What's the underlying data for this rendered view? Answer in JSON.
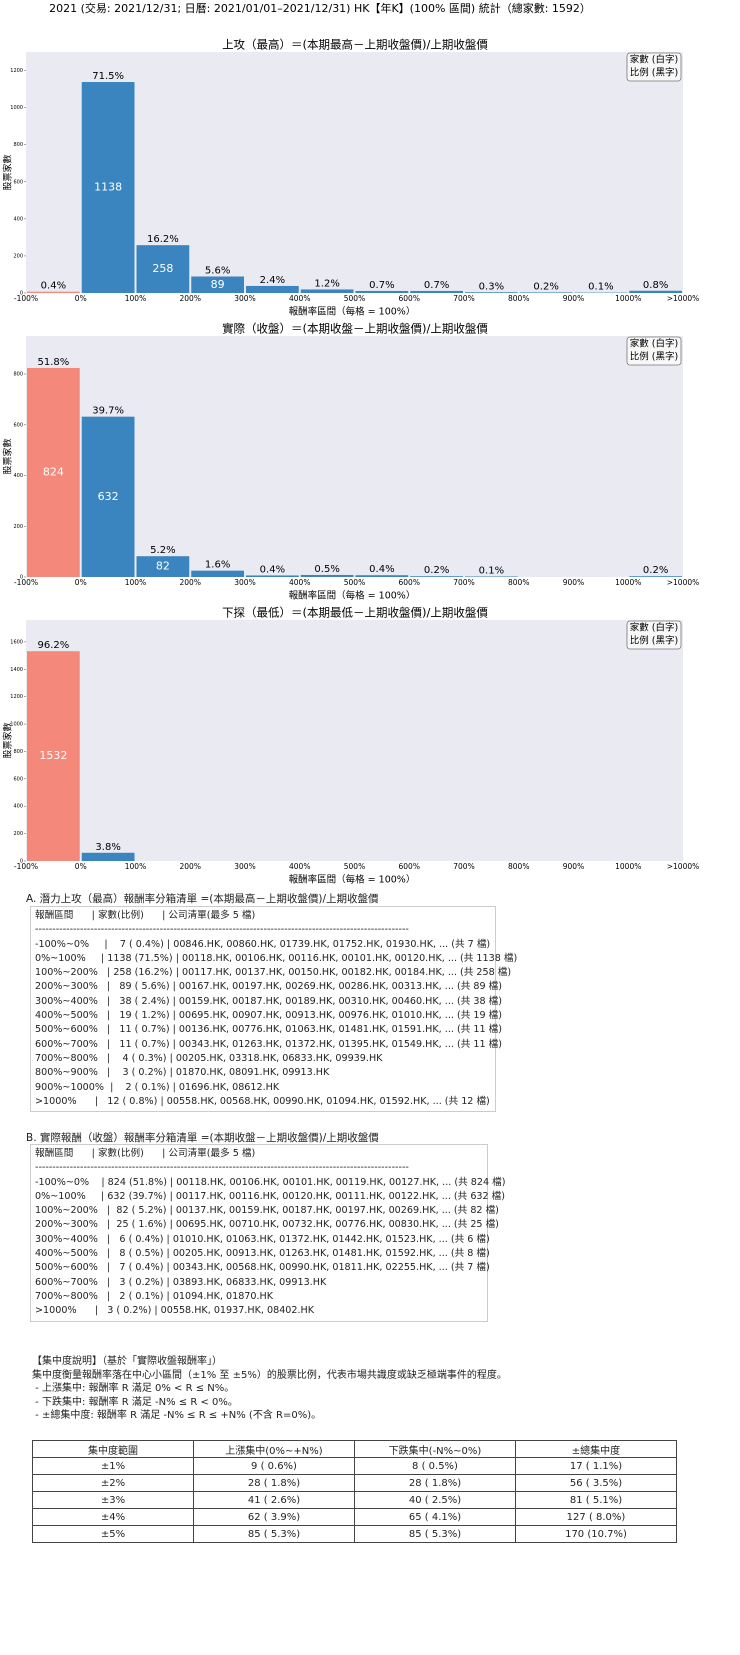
{
  "title": "2021 (交易: 2021/12/31; 日曆: 2021/01/01–2021/12/31) HK【年K】(100% 區間) 統計（總家數: 1592）",
  "chart_data": [
    {
      "type": "bar",
      "title": "上攻（最高）＝(本期最高－上期收盤價)/上期收盤價",
      "y_label": "股票家數",
      "x_label": "報酬率區間（每格 = 100%）",
      "bin_edges": [
        "-100%",
        "0%",
        "100%",
        "200%",
        "300%",
        "400%",
        "500%",
        "600%",
        "700%",
        "800%",
        "900%",
        "1000%",
        ">1000%"
      ],
      "values": [
        7,
        1138,
        258,
        89,
        38,
        19,
        11,
        11,
        4,
        3,
        2,
        12
      ],
      "percents": [
        "0.4%",
        "71.5%",
        "16.2%",
        "5.6%",
        "2.4%",
        "1.2%",
        "0.7%",
        "0.7%",
        "0.3%",
        "0.2%",
        "0.1%",
        "0.8%"
      ],
      "colors": [
        "#f4897b",
        "#3a84bf",
        "#3a84bf",
        "#3a84bf",
        "#3a84bf",
        "#3a84bf",
        "#3a84bf",
        "#3a84bf",
        "#3a84bf",
        "#3a84bf",
        "#3a84bf",
        "#3a84bf"
      ],
      "ylim": [
        0,
        1300
      ],
      "yticks": [
        0,
        200,
        400,
        600,
        800,
        1000,
        1200
      ],
      "legend": [
        "家數 (白字)",
        "比例 (黑字)"
      ]
    },
    {
      "type": "bar",
      "title": "實際（收盤）＝(本期收盤－上期收盤價)/上期收盤價",
      "y_label": "股票家數",
      "x_label": "報酬率區間（每格 = 100%）",
      "bin_edges": [
        "-100%",
        "0%",
        "100%",
        "200%",
        "300%",
        "400%",
        "500%",
        "600%",
        "700%",
        "800%",
        "900%",
        "1000%",
        ">1000%"
      ],
      "values": [
        824,
        632,
        82,
        25,
        6,
        8,
        7,
        3,
        2,
        0,
        0,
        3
      ],
      "percents": [
        "51.8%",
        "39.7%",
        "5.2%",
        "1.6%",
        "0.4%",
        "0.5%",
        "0.4%",
        "0.2%",
        "0.1%",
        null,
        null,
        "0.2%"
      ],
      "colors": [
        "#f4897b",
        "#3a84bf",
        "#3a84bf",
        "#3a84bf",
        "#3a84bf",
        "#3a84bf",
        "#3a84bf",
        "#3a84bf",
        "#3a84bf",
        "#3a84bf",
        "#3a84bf",
        "#3a84bf"
      ],
      "ylim": [
        0,
        950
      ],
      "yticks": [
        0,
        200,
        400,
        600,
        800
      ],
      "legend": [
        "家數 (白字)",
        "比例 (黑字)"
      ]
    },
    {
      "type": "bar",
      "title": "下探（最低）＝(本期最低－上期收盤價)/上期收盤價",
      "y_label": "股票家數",
      "x_label": "報酬率區間（每格 = 100%）",
      "bin_edges": [
        "-100%",
        "0%",
        "100%",
        "200%",
        "300%",
        "400%",
        "500%",
        "600%",
        "700%",
        "800%",
        "900%",
        "1000%",
        ">1000%"
      ],
      "values": [
        1532,
        60,
        0,
        0,
        0,
        0,
        0,
        0,
        0,
        0,
        0,
        0
      ],
      "percents": [
        "96.2%",
        "3.8%",
        null,
        null,
        null,
        null,
        null,
        null,
        null,
        null,
        null,
        null
      ],
      "colors": [
        "#f4897b",
        "#3a84bf",
        "#3a84bf",
        "#3a84bf",
        "#3a84bf",
        "#3a84bf",
        "#3a84bf",
        "#3a84bf",
        "#3a84bf",
        "#3a84bf",
        "#3a84bf",
        "#3a84bf"
      ],
      "ylim": [
        0,
        1760
      ],
      "yticks": [
        0,
        200,
        400,
        600,
        800,
        1000,
        1200,
        1400,
        1600
      ],
      "legend": [
        "家數 (白字)",
        "比例 (黑字)"
      ]
    }
  ],
  "lists": [
    {
      "heading": "A. 潛力上攻（最高）報酬率分箱清單 =(本期最高－上期收盤價)/上期收盤價",
      "header": "報酬區間      | 家數(比例)      | 公司清單(最多 5 檔)",
      "separator": "------------------------------------------------------------------------------------------------------------",
      "rows": [
        "-100%~0%     |    7 ( 0.4%) | 00846.HK, 00860.HK, 01739.HK, 01752.HK, 01930.HK, ... (共 7 檔)",
        "0%~100%     | 1138 (71.5%) | 00118.HK, 00106.HK, 00116.HK, 00101.HK, 00120.HK, ... (共 1138 檔)",
        "100%~200%   | 258 (16.2%) | 00117.HK, 00137.HK, 00150.HK, 00182.HK, 00184.HK, ... (共 258 檔)",
        "200%~300%   |   89 ( 5.6%) | 00167.HK, 00197.HK, 00269.HK, 00286.HK, 00313.HK, ... (共 89 檔)",
        "300%~400%   |   38 ( 2.4%) | 00159.HK, 00187.HK, 00189.HK, 00310.HK, 00460.HK, ... (共 38 檔)",
        "400%~500%   |   19 ( 1.2%) | 00695.HK, 00907.HK, 00913.HK, 00976.HK, 01010.HK, ... (共 19 檔)",
        "500%~600%   |   11 ( 0.7%) | 00136.HK, 00776.HK, 01063.HK, 01481.HK, 01591.HK, ... (共 11 檔)",
        "600%~700%   |   11 ( 0.7%) | 00343.HK, 01263.HK, 01372.HK, 01395.HK, 01549.HK, ... (共 11 檔)",
        "700%~800%   |    4 ( 0.3%) | 00205.HK, 03318.HK, 06833.HK, 09939.HK",
        "800%~900%   |    3 ( 0.2%) | 01870.HK, 08091.HK, 09913.HK",
        "900%~1000%  |    2 ( 0.1%) | 01696.HK, 08612.HK",
        ">1000%      |   12 ( 0.8%) | 00558.HK, 00568.HK, 00990.HK, 01094.HK, 01592.HK, ... (共 12 檔)"
      ]
    },
    {
      "heading": "B. 實際報酬（收盤）報酬率分箱清單 =(本期收盤－上期收盤價)/上期收盤價",
      "header": "報酬區間      | 家數(比例)      | 公司清單(最多 5 檔)",
      "separator": "------------------------------------------------------------------------------------------------------------",
      "rows": [
        "-100%~0%    | 824 (51.8%) | 00118.HK, 00106.HK, 00101.HK, 00119.HK, 00127.HK, ... (共 824 檔)",
        "0%~100%     | 632 (39.7%) | 00117.HK, 00116.HK, 00120.HK, 00111.HK, 00122.HK, ... (共 632 檔)",
        "100%~200%   |  82 ( 5.2%) | 00137.HK, 00159.HK, 00187.HK, 00197.HK, 00269.HK, ... (共 82 檔)",
        "200%~300%   |  25 ( 1.6%) | 00695.HK, 00710.HK, 00732.HK, 00776.HK, 00830.HK, ... (共 25 檔)",
        "300%~400%   |   6 ( 0.4%) | 01010.HK, 01063.HK, 01372.HK, 01442.HK, 01523.HK, ... (共 6 檔)",
        "400%~500%   |   8 ( 0.5%) | 00205.HK, 00913.HK, 01263.HK, 01481.HK, 01592.HK, ... (共 8 檔)",
        "500%~600%   |   7 ( 0.4%) | 00343.HK, 00568.HK, 00990.HK, 01811.HK, 02255.HK, ... (共 7 檔)",
        "600%~700%   |   3 ( 0.2%) | 03893.HK, 06833.HK, 09913.HK",
        "700%~800%   |   2 ( 0.1%) | 01094.HK, 01870.HK",
        ">1000%      |   3 ( 0.2%) | 00558.HK, 01937.HK, 08402.HK"
      ]
    }
  ],
  "notes": [
    "【集中度說明】（基於「實際收盤報酬率」）",
    "集中度衡量報酬率落在中心小區間（±1% 至 ±5%）的股票比例，代表市場共識度或缺乏極端事件的程度。",
    " - 上漲集中: 報酬率 R 滿足 0% < R ≤ N%。",
    " - 下跌集中: 報酬率 R 滿足 -N% ≤ R < 0%。",
    " - ±總集中度: 報酬率 R 滿足 -N% ≤ R ≤ +N% (不含 R=0%)。"
  ],
  "table": {
    "header": [
      "集中度範圍",
      "上漲集中(0%~+N%)",
      "下跌集中(-N%~0%)",
      "±總集中度"
    ],
    "rows": [
      [
        "±1%",
        "9 ( 0.6%)",
        "8 ( 0.5%)",
        "17 ( 1.1%)"
      ],
      [
        "±2%",
        "28 ( 1.8%)",
        "28 ( 1.8%)",
        "56 ( 3.5%)"
      ],
      [
        "±3%",
        "41 ( 2.6%)",
        "40 ( 2.5%)",
        "81 ( 5.1%)"
      ],
      [
        "±4%",
        "62 ( 3.9%)",
        "65 ( 4.1%)",
        "127 ( 8.0%)"
      ],
      [
        "±5%",
        "85 ( 5.3%)",
        "85 ( 5.3%)",
        "170 (10.7%)"
      ]
    ]
  }
}
